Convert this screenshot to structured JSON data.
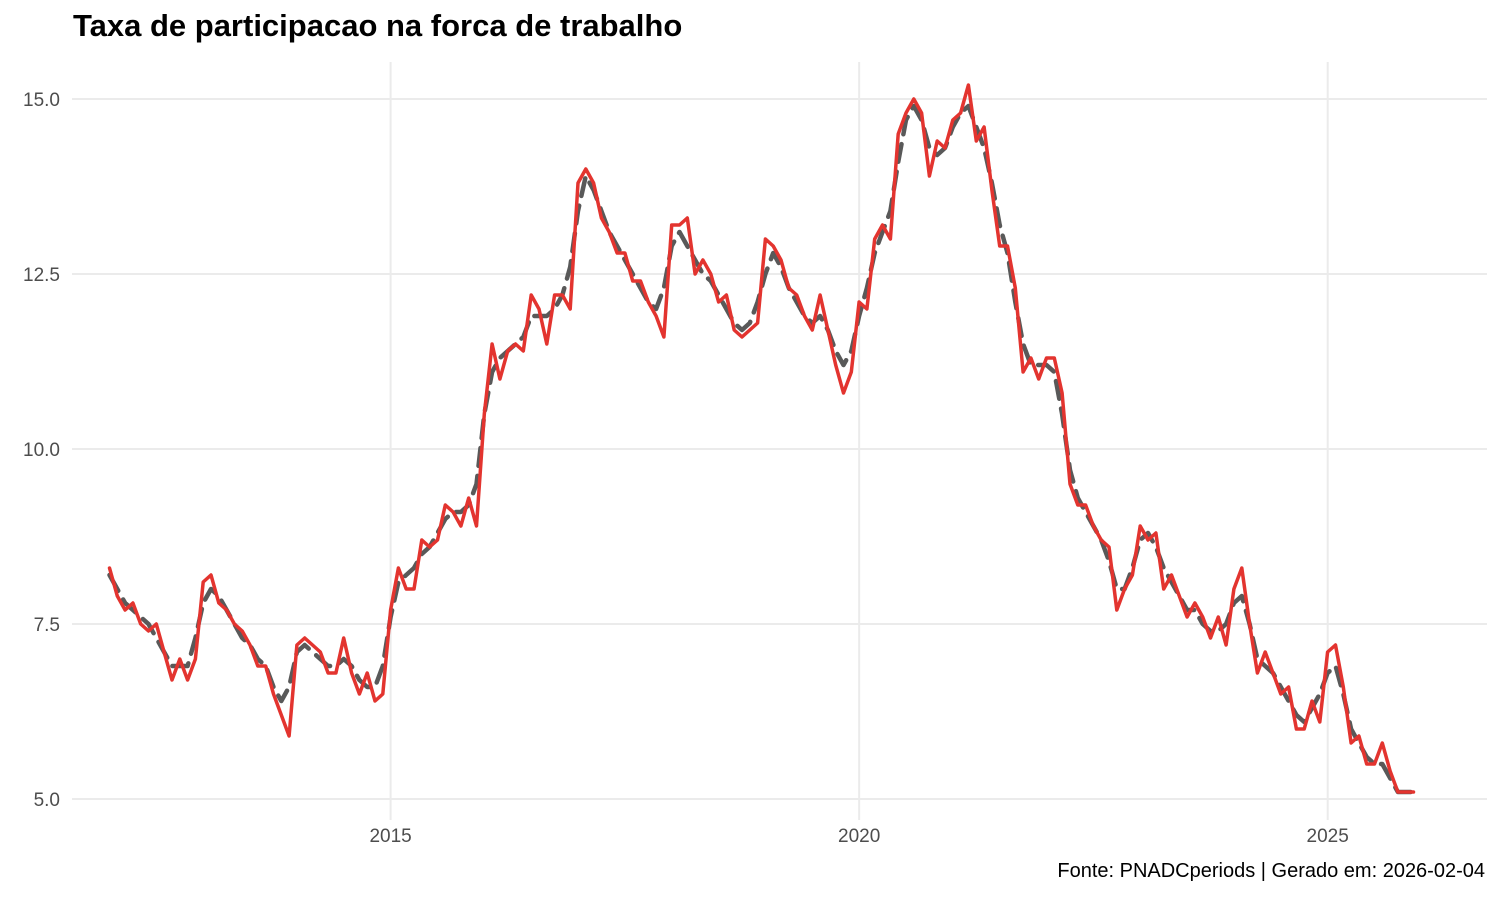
{
  "chart_data": {
    "type": "line",
    "title": "Taxa de participacao na forca de trabalho",
    "caption": "Fonte: PNADCperiods | Gerado em: 2026-02-04",
    "xlabel": "",
    "ylabel": "",
    "xlim": [
      2011.6,
      2026.7
    ],
    "ylim": [
      4.7,
      15.7
    ],
    "x_ticks": [
      2015,
      2020,
      2025
    ],
    "x_tick_labels": [
      "2015",
      "2020",
      "2025"
    ],
    "y_ticks": [
      5.0,
      7.5,
      10.0,
      12.5,
      15.0
    ],
    "y_tick_labels": [
      "5.0",
      "7.5",
      "10.0",
      "12.5",
      "15.0"
    ],
    "grid": true,
    "legend": "none",
    "series": [
      {
        "style": "solid",
        "color": "#e3342f",
        "x_start": 2012.0,
        "x_step": 0.08333,
        "values": [
          8.3,
          7.9,
          7.7,
          7.8,
          7.5,
          7.4,
          7.5,
          7.1,
          6.7,
          7.0,
          6.7,
          7.0,
          8.1,
          8.2,
          7.8,
          7.7,
          7.5,
          7.4,
          7.2,
          6.9,
          6.9,
          6.5,
          6.2,
          5.9,
          7.2,
          7.3,
          7.2,
          7.1,
          6.8,
          6.8,
          7.3,
          6.8,
          6.5,
          6.8,
          6.4,
          6.5,
          7.7,
          8.3,
          8.0,
          8.0,
          8.7,
          8.6,
          8.7,
          9.2,
          9.1,
          8.9,
          9.3,
          8.9,
          10.5,
          11.5,
          11.0,
          11.4,
          11.5,
          11.4,
          12.2,
          12.0,
          11.5,
          12.2,
          12.2,
          12.0,
          13.8,
          14.0,
          13.8,
          13.3,
          13.1,
          12.8,
          12.8,
          12.4,
          12.4,
          12.1,
          11.9,
          11.6,
          13.2,
          13.2,
          13.3,
          12.5,
          12.7,
          12.5,
          12.1,
          12.2,
          11.7,
          11.6,
          11.7,
          11.8,
          13.0,
          12.9,
          12.7,
          12.3,
          12.2,
          11.9,
          11.7,
          12.2,
          11.7,
          11.2,
          10.8,
          11.1,
          12.1,
          12.0,
          13.0,
          13.2,
          13.0,
          14.5,
          14.8,
          15.0,
          14.8,
          13.9,
          14.4,
          14.3,
          14.7,
          14.8,
          15.2,
          14.4,
          14.6,
          13.7,
          12.9,
          12.9,
          12.3,
          11.1,
          11.3,
          11.0,
          11.3,
          11.3,
          10.8,
          9.5,
          9.2,
          9.2,
          8.9,
          8.7,
          8.6,
          7.7,
          8.0,
          8.2,
          8.9,
          8.7,
          8.8,
          8.0,
          8.2,
          7.9,
          7.6,
          7.8,
          7.6,
          7.3,
          7.6,
          7.2,
          8.0,
          8.3,
          7.5,
          6.8,
          7.1,
          6.8,
          6.5,
          6.6,
          6.0,
          6.0,
          6.4,
          6.1,
          7.1,
          7.2,
          6.6,
          5.8,
          5.9,
          5.5,
          5.5,
          5.8,
          5.4,
          5.1,
          5.1,
          5.1
        ]
      },
      {
        "style": "dashed",
        "color": "#595959",
        "x_start": 2012.0,
        "x_step": 0.08333,
        "values": [
          8.2,
          8.0,
          7.8,
          7.7,
          7.6,
          7.5,
          7.3,
          7.1,
          6.9,
          6.9,
          6.9,
          7.3,
          7.8,
          8.0,
          7.9,
          7.7,
          7.5,
          7.3,
          7.2,
          7.0,
          6.9,
          6.6,
          6.4,
          6.6,
          7.1,
          7.2,
          7.1,
          7.0,
          6.9,
          6.9,
          7.0,
          6.9,
          6.7,
          6.6,
          6.6,
          6.9,
          7.6,
          8.1,
          8.2,
          8.3,
          8.5,
          8.6,
          8.8,
          9.0,
          9.1,
          9.1,
          9.2,
          9.5,
          10.5,
          11.1,
          11.3,
          11.4,
          11.5,
          11.6,
          11.9,
          11.9,
          11.9,
          12.0,
          12.2,
          12.6,
          13.4,
          13.9,
          13.7,
          13.4,
          13.1,
          12.9,
          12.7,
          12.5,
          12.3,
          12.1,
          12.0,
          12.3,
          12.9,
          13.1,
          12.9,
          12.7,
          12.5,
          12.4,
          12.2,
          12.0,
          11.8,
          11.7,
          11.8,
          12.1,
          12.5,
          12.8,
          12.6,
          12.3,
          12.1,
          11.9,
          11.8,
          11.9,
          11.7,
          11.4,
          11.2,
          11.4,
          11.9,
          12.3,
          12.8,
          13.1,
          13.4,
          14.1,
          14.7,
          14.9,
          14.7,
          14.3,
          14.2,
          14.3,
          14.6,
          14.8,
          14.9,
          14.6,
          14.3,
          13.8,
          13.2,
          12.8,
          12.1,
          11.5,
          11.2,
          11.2,
          11.2,
          11.1,
          10.5,
          9.7,
          9.3,
          9.1,
          8.9,
          8.7,
          8.4,
          8.0,
          8.0,
          8.3,
          8.7,
          8.8,
          8.6,
          8.3,
          8.1,
          7.9,
          7.7,
          7.7,
          7.5,
          7.4,
          7.4,
          7.5,
          7.8,
          7.9,
          7.5,
          7.0,
          6.9,
          6.8,
          6.6,
          6.4,
          6.2,
          6.1,
          6.3,
          6.5,
          6.8,
          6.9,
          6.5,
          6.0,
          5.8,
          5.6,
          5.5,
          5.5,
          5.3,
          5.1,
          5.1,
          5.1
        ]
      }
    ]
  }
}
